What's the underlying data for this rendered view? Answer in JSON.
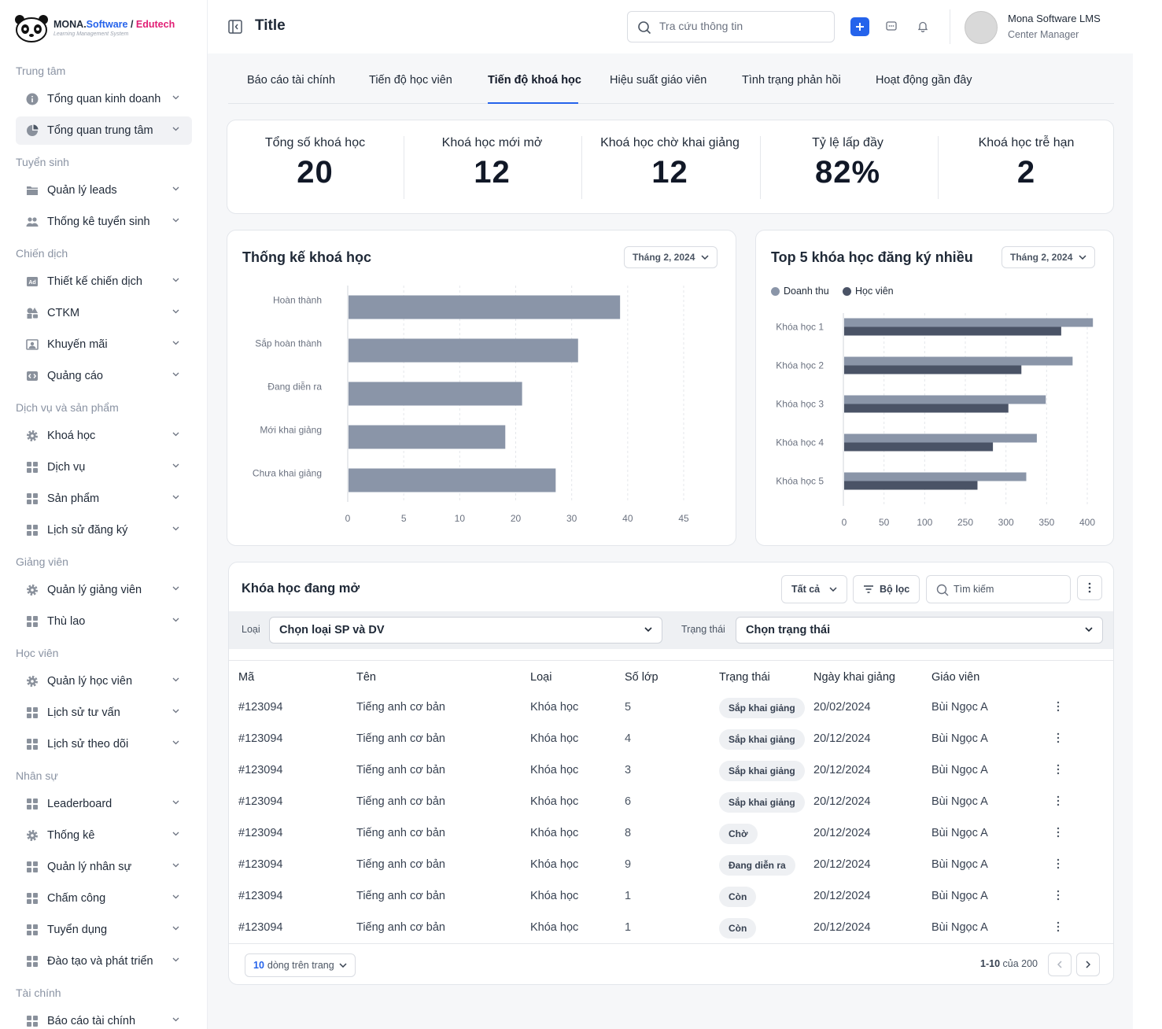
{
  "brand": {
    "name_main": "MONA.",
    "name_software": "Software",
    "name_sep": " / ",
    "name_edutech": "Edutech",
    "tagline": "Learning Management System"
  },
  "sidebar": {
    "sections": [
      {
        "title": "Trung tâm",
        "items": [
          {
            "label": "Tổng quan kinh doanh",
            "icon": "info-icon"
          },
          {
            "label": "Tổng quan trung tâm",
            "icon": "pie-chart-icon",
            "active": true
          }
        ]
      },
      {
        "title": "Tuyển sinh",
        "items": [
          {
            "label": "Quản lý leads",
            "icon": "folder-icon"
          },
          {
            "label": "Thống kê tuyển sinh",
            "icon": "users-icon"
          }
        ]
      },
      {
        "title": "Chiến dịch",
        "items": [
          {
            "label": "Thiết kế chiến dịch",
            "icon": "ad-icon"
          },
          {
            "label": "CTKM",
            "icon": "shapes-icon"
          },
          {
            "label": "Khuyến mãi",
            "icon": "image-icon"
          },
          {
            "label": "Quảng cáo",
            "icon": "code-icon"
          }
        ]
      },
      {
        "title": "Dịch vụ và sản phẩm",
        "items": [
          {
            "label": "Khoá học",
            "icon": "gear-icon"
          },
          {
            "label": "Dịch vụ",
            "icon": "grid-icon"
          },
          {
            "label": "Sản phẩm",
            "icon": "grid-icon"
          },
          {
            "label": "Lịch sử đăng ký",
            "icon": "grid-icon"
          }
        ]
      },
      {
        "title": "Giảng viên",
        "items": [
          {
            "label": "Quản lý giảng viên",
            "icon": "gear-icon"
          },
          {
            "label": "Thù lao",
            "icon": "grid-icon"
          }
        ]
      },
      {
        "title": "Học viên",
        "items": [
          {
            "label": "Quản lý học viên",
            "icon": "gear-icon"
          },
          {
            "label": "Lịch sử tư vấn",
            "icon": "grid-icon"
          },
          {
            "label": "Lịch sử theo dõi",
            "icon": "grid-icon"
          }
        ]
      },
      {
        "title": "Nhân sự",
        "items": [
          {
            "label": "Leaderboard",
            "icon": "grid-icon"
          },
          {
            "label": "Thống kê",
            "icon": "gear-icon"
          },
          {
            "label": "Quản lý nhân sự",
            "icon": "grid-icon"
          },
          {
            "label": "Chấm công",
            "icon": "grid-icon"
          },
          {
            "label": "Tuyển dụng",
            "icon": "grid-icon"
          },
          {
            "label": "Đào tạo và phát triển",
            "icon": "grid-icon"
          }
        ]
      },
      {
        "title": "Tài chính",
        "items": [
          {
            "label": "Báo cáo tài chính",
            "icon": "grid-icon"
          }
        ]
      }
    ]
  },
  "header": {
    "title": "Title",
    "search_placeholder": "Tra cứu thông tin",
    "user_name": "Mona Software LMS",
    "user_role": "Center Manager"
  },
  "tabs": [
    "Báo cáo tài chính",
    "Tiến độ học viên",
    "Tiến độ khoá học",
    "Hiệu suất giáo viên",
    "Tình trạng phản hồi",
    "Hoạt động gần đây"
  ],
  "active_tab": 2,
  "stats": [
    {
      "label": "Tổng số khoá học",
      "value": "20"
    },
    {
      "label": "Khoá học mới mở",
      "value": "12"
    },
    {
      "label": "Khoá học chờ khai giảng",
      "value": "12"
    },
    {
      "label": "Tỷ lệ lấp đầy",
      "value": "82%"
    },
    {
      "label": "Khoá học trễ hạn",
      "value": "2"
    }
  ],
  "course_stats": {
    "title": "Thống kế khoá học",
    "period": "Tháng 2, 2024"
  },
  "top5": {
    "title": "Top 5 khóa học đăng ký nhiều",
    "period": "Tháng 2, 2024"
  },
  "chart_data": [
    {
      "type": "bar",
      "orientation": "horizontal",
      "title": "Thống kế khoá học",
      "categories": [
        "Hoàn thành",
        "Sắp hoàn thành",
        "Đang diễn ra",
        "Mới khai giảng",
        "Chưa khai giảng"
      ],
      "values": [
        38.5,
        31,
        21,
        18,
        27
      ],
      "xticks": [
        "0",
        "5",
        "10",
        "20",
        "30",
        "40",
        "45"
      ],
      "color": "#8a95a8"
    },
    {
      "type": "bar",
      "orientation": "horizontal",
      "title": "Top 5 khóa học đăng ký nhiều",
      "categories": [
        "Khóa học 1",
        "Khóa học 2",
        "Khóa học 3",
        "Khóa học 4",
        "Khóa học 5"
      ],
      "series": [
        {
          "name": "Doanh thu",
          "color": "#8a95a8",
          "values": [
            406,
            381,
            348,
            337,
            324
          ]
        },
        {
          "name": "Học viên",
          "color": "#4a5366",
          "values": [
            367,
            318,
            302,
            283,
            264
          ]
        }
      ],
      "xticks": [
        "0",
        "50",
        "100",
        "250",
        "300",
        "350",
        "400"
      ],
      "legend": "top-left"
    }
  ],
  "table": {
    "title": "Khóa học đang mở",
    "filter_all": "Tất cả",
    "filter_btn": "Bộ lọc",
    "search_placeholder": "Tìm kiếm",
    "type_label": "Loại",
    "type_select": "Chọn loại SP và DV",
    "status_label": "Trạng thái",
    "status_select": "Chọn trạng thái",
    "columns": [
      "Mã",
      "Tên",
      "Loại",
      "Số lớp",
      "Trạng thái",
      "Ngày khai giảng",
      "Giáo viên"
    ],
    "rows": [
      {
        "code": "#123094",
        "name": "Tiếng anh cơ bản",
        "type": "Khóa học",
        "classes": "5",
        "status": "Sắp khai giảng",
        "date": "20/02/2024",
        "teacher": "Bùi Ngọc A"
      },
      {
        "code": "#123094",
        "name": "Tiếng anh cơ bản",
        "type": "Khóa học",
        "classes": "4",
        "status": "Sắp khai giảng",
        "date": "20/12/2024",
        "teacher": "Bùi Ngọc A"
      },
      {
        "code": "#123094",
        "name": "Tiếng anh cơ bản",
        "type": "Khóa học",
        "classes": "3",
        "status": "Sắp khai giảng",
        "date": "20/12/2024",
        "teacher": "Bùi Ngọc A"
      },
      {
        "code": "#123094",
        "name": "Tiếng anh cơ bản",
        "type": "Khóa học",
        "classes": "6",
        "status": "Sắp khai giảng",
        "date": "20/12/2024",
        "teacher": "Bùi Ngọc A"
      },
      {
        "code": "#123094",
        "name": "Tiếng anh cơ bản",
        "type": "Khóa học",
        "classes": "8",
        "status": "Chờ",
        "date": "20/12/2024",
        "teacher": "Bùi Ngọc A"
      },
      {
        "code": "#123094",
        "name": "Tiếng anh cơ bản",
        "type": "Khóa học",
        "classes": "9",
        "status": "Đang diễn ra",
        "date": "20/12/2024",
        "teacher": "Bùi Ngọc A"
      },
      {
        "code": "#123094",
        "name": "Tiếng anh cơ bản",
        "type": "Khóa học",
        "classes": "1",
        "status": "Còn",
        "date": "20/12/2024",
        "teacher": "Bùi Ngọc A"
      },
      {
        "code": "#123094",
        "name": "Tiếng anh cơ bản",
        "type": "Khóa học",
        "classes": "1",
        "status": "Còn",
        "date": "20/12/2024",
        "teacher": "Bùi Ngọc A"
      }
    ],
    "page_size_num": "10",
    "page_size_text": "dòng trên trang",
    "page_range": "1-10",
    "page_of": "của 200"
  }
}
